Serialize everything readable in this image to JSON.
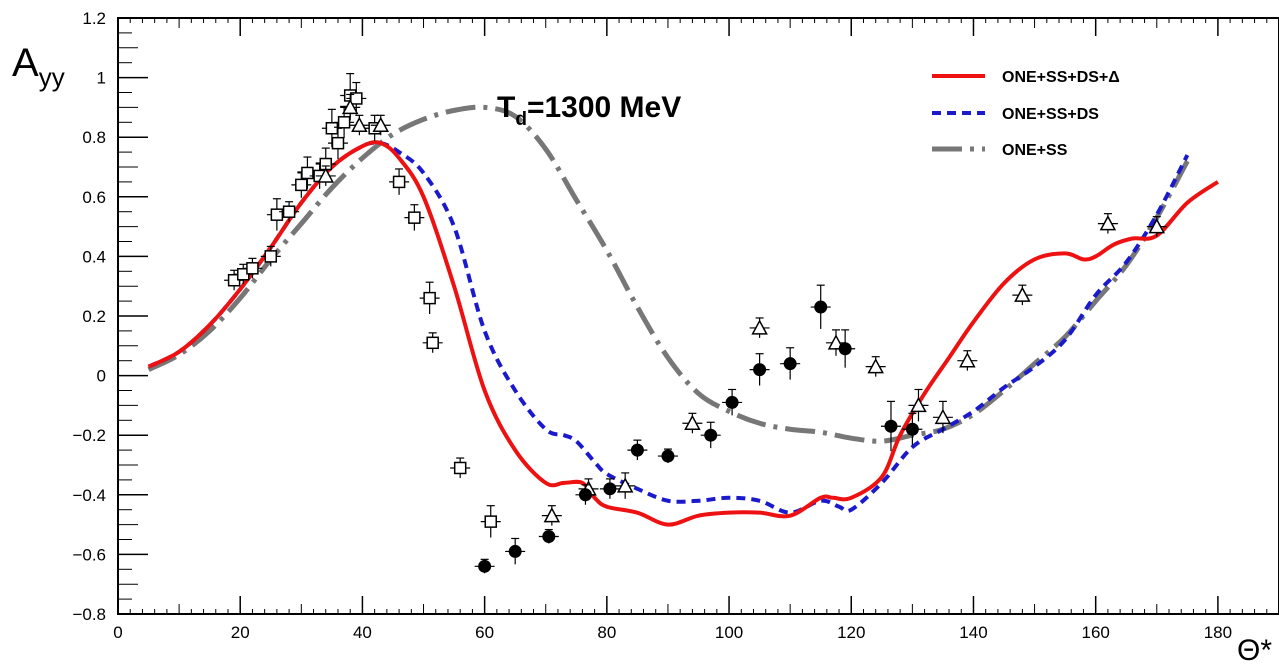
{
  "chart_data": {
    "type": "line",
    "annotation": {
      "main": "T",
      "sub": "d",
      "rest": "=1300 MeV"
    },
    "xlabel": "Θ*",
    "ylabel": {
      "main": "A",
      "sub": "yy"
    },
    "xlim": [
      0,
      190
    ],
    "ylim": [
      -0.8,
      1.2
    ],
    "x_ticks": [
      0,
      20,
      40,
      60,
      80,
      100,
      120,
      140,
      160,
      180
    ],
    "y_ticks": [
      -0.8,
      -0.6,
      -0.4,
      -0.2,
      0,
      0.2,
      0.4,
      0.6,
      0.8,
      1,
      1.2
    ],
    "x_tick_labels": [
      "0",
      "20",
      "40",
      "60",
      "80",
      "100",
      "120",
      "140",
      "160",
      "180"
    ],
    "y_tick_labels": [
      "−0.8",
      "−0.6",
      "−0.4",
      "−0.2",
      "0",
      "0.2",
      "0.4",
      "0.6",
      "0.8",
      "1",
      "1.2"
    ],
    "legend_position": "top-right",
    "series": [
      {
        "name": "ONE+SS+DS+Δ",
        "color": "#ee1111",
        "style": "solid",
        "x": [
          5,
          10,
          15,
          20,
          25,
          30,
          35,
          40,
          43,
          46,
          50,
          55,
          60,
          65,
          70,
          73,
          76,
          78,
          80,
          85,
          90,
          95,
          100,
          105,
          110,
          115,
          117,
          120,
          125,
          128,
          132,
          136,
          140,
          145,
          150,
          155,
          158,
          160,
          163,
          166,
          170,
          175,
          180
        ],
        "y": [
          0.03,
          0.08,
          0.17,
          0.29,
          0.43,
          0.58,
          0.7,
          0.77,
          0.78,
          0.73,
          0.6,
          0.3,
          -0.05,
          -0.25,
          -0.36,
          -0.36,
          -0.36,
          -0.41,
          -0.44,
          -0.46,
          -0.5,
          -0.47,
          -0.46,
          -0.46,
          -0.47,
          -0.41,
          -0.41,
          -0.41,
          -0.34,
          -0.2,
          -0.06,
          0.06,
          0.18,
          0.31,
          0.39,
          0.41,
          0.39,
          0.4,
          0.44,
          0.46,
          0.47,
          0.58,
          0.65
        ]
      },
      {
        "name": "ONE+SS+DS",
        "color": "#1a1acc",
        "style": "short-dash",
        "x": [
          5,
          10,
          15,
          20,
          25,
          30,
          35,
          40,
          43,
          46,
          50,
          55,
          60,
          65,
          70,
          73,
          75,
          78,
          80,
          85,
          90,
          95,
          100,
          105,
          110,
          115,
          118,
          120,
          125,
          130,
          135,
          140,
          145,
          150,
          155,
          160,
          165,
          170,
          175
        ],
        "y": [
          0.03,
          0.08,
          0.17,
          0.29,
          0.43,
          0.58,
          0.7,
          0.77,
          0.78,
          0.75,
          0.68,
          0.5,
          0.15,
          -0.05,
          -0.18,
          -0.2,
          -0.22,
          -0.29,
          -0.33,
          -0.38,
          -0.42,
          -0.42,
          -0.41,
          -0.42,
          -0.46,
          -0.42,
          -0.44,
          -0.45,
          -0.36,
          -0.24,
          -0.18,
          -0.12,
          -0.04,
          0.03,
          0.12,
          0.27,
          0.38,
          0.54,
          0.74
        ]
      },
      {
        "name": "ONE+SS",
        "color": "#777777",
        "style": "dash-dot",
        "x": [
          5,
          10,
          15,
          20,
          25,
          30,
          35,
          40,
          45,
          50,
          55,
          60,
          65,
          70,
          75,
          80,
          85,
          90,
          95,
          100,
          105,
          110,
          115,
          120,
          125,
          130,
          135,
          140,
          145,
          150,
          155,
          160,
          165,
          170,
          175
        ],
        "y": [
          0.02,
          0.07,
          0.15,
          0.26,
          0.39,
          0.51,
          0.63,
          0.73,
          0.81,
          0.86,
          0.89,
          0.9,
          0.87,
          0.76,
          0.59,
          0.42,
          0.23,
          0.06,
          -0.06,
          -0.12,
          -0.16,
          -0.18,
          -0.19,
          -0.21,
          -0.22,
          -0.2,
          -0.18,
          -0.13,
          -0.05,
          0.04,
          0.13,
          0.25,
          0.37,
          0.53,
          0.72
        ]
      }
    ],
    "scatter_series": [
      {
        "marker": "open-square",
        "points": [
          [
            19,
            0.32,
            0.02
          ],
          [
            20.5,
            0.34,
            0.02
          ],
          [
            22,
            0.36,
            0.02
          ],
          [
            25,
            0.4,
            0.02
          ],
          [
            26,
            0.54,
            0.04
          ],
          [
            28,
            0.55,
            0.02
          ],
          [
            30,
            0.64,
            0.03
          ],
          [
            31,
            0.68,
            0.04
          ],
          [
            33,
            0.67,
            0.03
          ],
          [
            34,
            0.71,
            0.04
          ],
          [
            35,
            0.83,
            0.05
          ],
          [
            36,
            0.78,
            0.04
          ],
          [
            37,
            0.85,
            0.04
          ],
          [
            38,
            0.94,
            0.06
          ],
          [
            39,
            0.93,
            0.04
          ],
          [
            42,
            0.83,
            0.03
          ],
          [
            46,
            0.65,
            0.03
          ],
          [
            48.5,
            0.53,
            0.03
          ],
          [
            51,
            0.26,
            0.04
          ],
          [
            51.5,
            0.11,
            0.02
          ],
          [
            56,
            -0.31,
            0.02
          ],
          [
            61,
            -0.49,
            0.04
          ]
        ]
      },
      {
        "marker": "open-triangle",
        "points": [
          [
            34,
            0.67,
            0.02
          ],
          [
            38,
            0.9,
            0.03
          ],
          [
            39.5,
            0.84,
            0.02
          ],
          [
            43,
            0.84,
            0.02
          ],
          [
            71,
            -0.47,
            0.02
          ],
          [
            77,
            -0.38,
            0.02
          ],
          [
            83,
            -0.37,
            0.03
          ],
          [
            94,
            -0.16,
            0.02
          ],
          [
            105,
            0.16,
            0.02
          ],
          [
            117.5,
            0.11,
            0.03
          ],
          [
            124,
            0.03,
            0.02
          ],
          [
            131,
            -0.1,
            0.04
          ],
          [
            135,
            -0.14,
            0.04
          ],
          [
            139,
            0.05,
            0.02
          ],
          [
            148,
            0.27,
            0.02
          ],
          [
            162,
            0.51,
            0.02
          ],
          [
            170,
            0.5,
            0.02
          ]
        ]
      },
      {
        "marker": "filled-circle",
        "points": [
          [
            60,
            -0.64,
            0.01
          ],
          [
            65,
            -0.59,
            0.03
          ],
          [
            70.5,
            -0.54,
            0.01
          ],
          [
            76.5,
            -0.4,
            0.02
          ],
          [
            80.5,
            -0.38,
            0.02
          ],
          [
            85,
            -0.25,
            0.02
          ],
          [
            90,
            -0.27,
            0.01
          ],
          [
            97,
            -0.2,
            0.03
          ],
          [
            100.5,
            -0.09,
            0.03
          ],
          [
            105,
            0.02,
            0.04
          ],
          [
            110,
            0.04,
            0.04
          ],
          [
            115,
            0.23,
            0.06
          ],
          [
            119,
            0.09,
            0.05
          ],
          [
            126.5,
            -0.17,
            0.07
          ],
          [
            130,
            -0.18,
            0.04
          ]
        ]
      }
    ]
  }
}
